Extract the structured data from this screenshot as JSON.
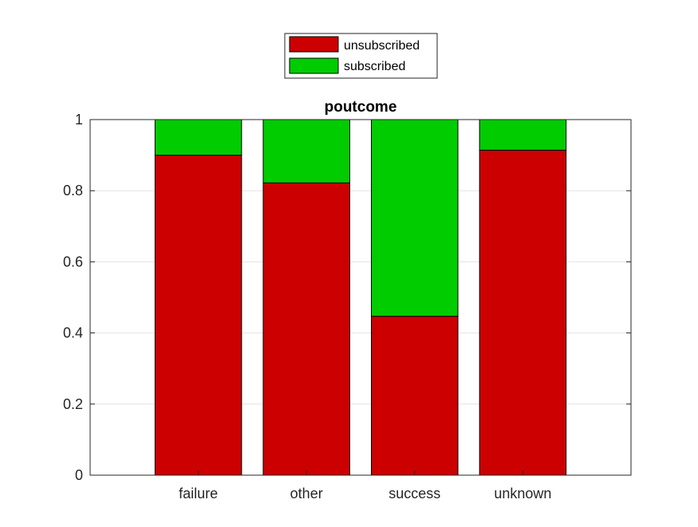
{
  "chart_data": {
    "type": "bar",
    "stacked": true,
    "title": "poutcome",
    "xlabel": "",
    "ylabel": "",
    "categories": [
      "failure",
      "other",
      "success",
      "unknown"
    ],
    "series": [
      {
        "name": "unsubscribed",
        "color": "#cc0000",
        "values": [
          0.9,
          0.822,
          0.447,
          0.914
        ]
      },
      {
        "name": "subscribed",
        "color": "#00cc00",
        "values": [
          0.1,
          0.178,
          0.553,
          0.086
        ]
      }
    ],
    "ylim": [
      0,
      1
    ],
    "yticks": [
      "0",
      "0.2",
      "0.4",
      "0.6",
      "0.8",
      "1"
    ],
    "grid": "horizontal",
    "legend_position": "top-center"
  }
}
